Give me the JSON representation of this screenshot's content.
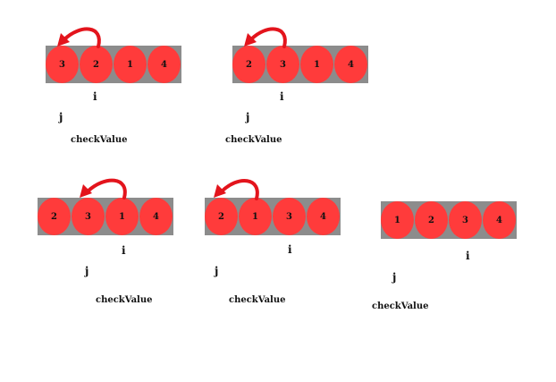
{
  "labels": {
    "i": "i",
    "j": "j",
    "check": "checkValue"
  },
  "colors": {
    "ball": "#ff3b3b",
    "bar": "#8c8c8c",
    "arrow": "#e3141c"
  },
  "steps": [
    {
      "values": [
        "3",
        "2",
        "1",
        "4"
      ]
    },
    {
      "values": [
        "2",
        "3",
        "1",
        "4"
      ]
    },
    {
      "values": [
        "2",
        "3",
        "1",
        "4"
      ]
    },
    {
      "values": [
        "2",
        "1",
        "3",
        "4"
      ]
    },
    {
      "values": [
        "1",
        "2",
        "3",
        "4"
      ]
    }
  ]
}
